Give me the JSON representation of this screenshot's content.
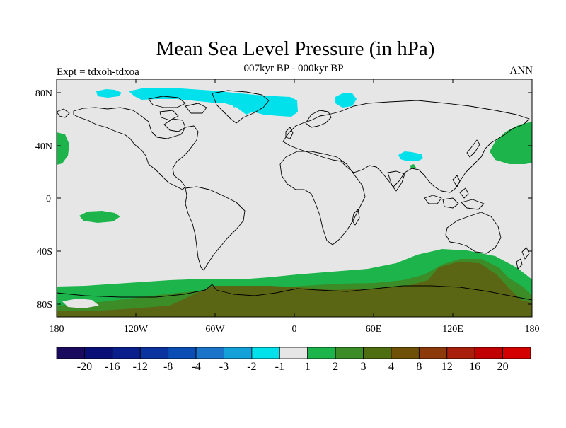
{
  "title": "Mean Sea Level Pressure (in hPa)",
  "subtitle": "007kyr BP - 000kyr BP",
  "left_label": "Expt = tdxoh-tdxoa",
  "right_label": "ANN",
  "lat_ticks": [
    "80N",
    "40N",
    "0",
    "40S",
    "80S"
  ],
  "lon_ticks": [
    "180",
    "120W",
    "60W",
    "0",
    "60E",
    "120E",
    "180"
  ],
  "colorbar": {
    "labels": [
      "-20",
      "-16",
      "-12",
      "-8",
      "-4",
      "-3",
      "-2",
      "-1",
      "1",
      "2",
      "3",
      "4",
      "8",
      "12",
      "16",
      "20"
    ],
    "colors": [
      "#1a0a5e",
      "#0a0f78",
      "#0a1f8c",
      "#0a33a0",
      "#0a4db4",
      "#1a74c8",
      "#14a0d8",
      "#00e1ec",
      "#e6e6e6",
      "#1cb44b",
      "#3c8c28",
      "#4f6e12",
      "#6e5009",
      "#8c3a0a",
      "#a81e0a",
      "#c00000",
      "#d40000"
    ]
  },
  "colors": {
    "background_field": "#e6e6e6",
    "cyan": "#00e1ec",
    "green": "#1cb44b",
    "dark_green": "#4f6e12",
    "olive": "#5b6614"
  }
}
